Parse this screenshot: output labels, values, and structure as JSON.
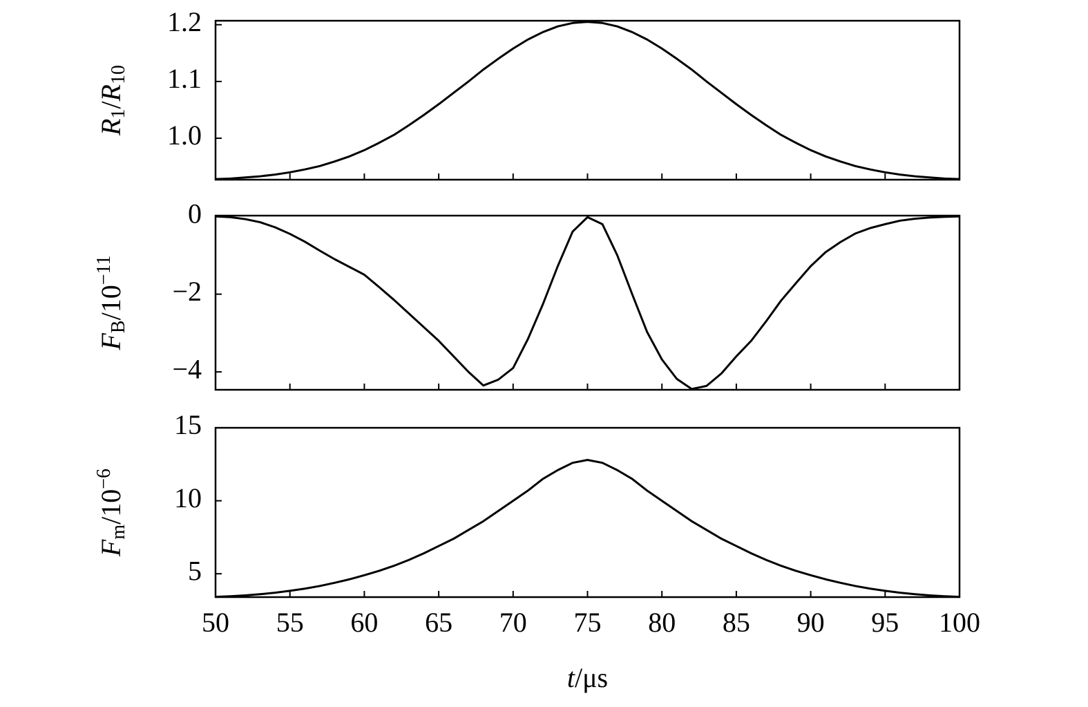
{
  "chart_data": [
    {
      "type": "line",
      "ylabel": [
        {
          "text": "R",
          "style": "italic"
        },
        {
          "text": "1",
          "style": "sub"
        },
        {
          "text": "/"
        },
        {
          "text": "R",
          "style": "italic"
        },
        {
          "text": "10",
          "style": "sub"
        }
      ],
      "x": [
        50,
        51,
        52,
        53,
        54,
        55,
        56,
        57,
        58,
        59,
        60,
        61,
        62,
        63,
        64,
        65,
        66,
        67,
        68,
        69,
        70,
        71,
        72,
        73,
        74,
        75,
        76,
        77,
        78,
        79,
        80,
        81,
        82,
        83,
        84,
        85,
        86,
        87,
        88,
        89,
        90,
        91,
        92,
        93,
        94,
        95,
        96,
        97,
        98,
        99,
        100
      ],
      "values": [
        0.928,
        0.929,
        0.931,
        0.933,
        0.936,
        0.94,
        0.945,
        0.951,
        0.959,
        0.968,
        0.979,
        0.992,
        1.006,
        1.023,
        1.041,
        1.06,
        1.08,
        1.1,
        1.121,
        1.14,
        1.158,
        1.174,
        1.187,
        1.197,
        1.203,
        1.205,
        1.203,
        1.197,
        1.187,
        1.174,
        1.158,
        1.14,
        1.121,
        1.1,
        1.08,
        1.06,
        1.041,
        1.023,
        1.006,
        0.992,
        0.979,
        0.968,
        0.959,
        0.951,
        0.945,
        0.94,
        0.936,
        0.933,
        0.931,
        0.929,
        0.928
      ],
      "color": "#000000",
      "xlim": [
        50,
        100
      ],
      "xticks": [
        50,
        55,
        60,
        65,
        70,
        75,
        80,
        85,
        90,
        95,
        100
      ],
      "ylim": [
        0.927,
        1.207
      ],
      "yticks": [
        {
          "value": 1,
          "label": "1.0"
        },
        1.1,
        1.2
      ]
    },
    {
      "type": "line",
      "ylabel": [
        {
          "text": "F",
          "style": "italic"
        },
        {
          "text": "B",
          "style": "sub"
        },
        {
          "text": "/10"
        },
        {
          "text": "−11",
          "style": "sup"
        }
      ],
      "x": [
        50,
        51,
        52,
        53,
        54,
        55,
        56,
        57,
        58,
        59,
        60,
        61,
        62,
        63,
        64,
        65,
        66,
        67,
        68,
        69,
        70,
        71,
        72,
        73,
        74,
        75,
        76,
        77,
        78,
        79,
        80,
        81,
        82,
        83,
        84,
        85,
        86,
        87,
        88,
        89,
        90,
        91,
        92,
        93,
        94,
        95,
        96,
        97,
        98,
        99,
        100
      ],
      "values": [
        0,
        -0.02,
        -0.07,
        -0.15,
        -0.28,
        -0.45,
        -0.65,
        -0.88,
        -1.1,
        -1.3,
        -1.5,
        -1.82,
        -2.15,
        -2.5,
        -2.85,
        -3.2,
        -3.6,
        -4.0,
        -4.35,
        -4.2,
        -3.9,
        -3.15,
        -2.26,
        -1.28,
        -0.39,
        -0.02,
        -0.2,
        -1.0,
        -2.0,
        -2.97,
        -3.68,
        -4.18,
        -4.44,
        -4.36,
        -4.04,
        -3.6,
        -3.2,
        -2.7,
        -2.17,
        -1.72,
        -1.28,
        -0.92,
        -0.66,
        -0.44,
        -0.3,
        -0.2,
        -0.11,
        -0.06,
        -0.03,
        -0.01,
        0
      ],
      "color": "#000000",
      "xlim": [
        50,
        100
      ],
      "xticks": [
        50,
        55,
        60,
        65,
        70,
        75,
        80,
        85,
        90,
        95,
        100
      ],
      "ylim": [
        -4.46,
        0.02
      ],
      "yticks": [
        {
          "value": -4,
          "label": "−4"
        },
        {
          "value": -2,
          "label": "−2"
        },
        0
      ]
    },
    {
      "type": "line",
      "ylabel": [
        {
          "text": "F",
          "style": "italic"
        },
        {
          "text": "m",
          "style": "sub"
        },
        {
          "text": "/10"
        },
        {
          "text": "−6",
          "style": "sup"
        }
      ],
      "xlabel": [
        {
          "text": "t",
          "style": "italic"
        },
        {
          "text": "/μs"
        }
      ],
      "x": [
        50,
        51,
        52,
        53,
        54,
        55,
        56,
        57,
        58,
        59,
        60,
        61,
        62,
        63,
        64,
        65,
        66,
        67,
        68,
        69,
        70,
        71,
        72,
        73,
        74,
        75,
        76,
        77,
        78,
        79,
        80,
        81,
        82,
        83,
        84,
        85,
        86,
        87,
        88,
        89,
        90,
        91,
        92,
        93,
        94,
        95,
        96,
        97,
        98,
        99,
        100
      ],
      "values": [
        3.42,
        3.46,
        3.52,
        3.6,
        3.7,
        3.83,
        3.98,
        4.16,
        4.38,
        4.62,
        4.9,
        5.2,
        5.55,
        5.95,
        6.4,
        6.9,
        7.4,
        8.0,
        8.6,
        9.3,
        10.0,
        10.7,
        11.5,
        12.1,
        12.6,
        12.8,
        12.6,
        12.1,
        11.5,
        10.7,
        10.0,
        9.3,
        8.6,
        8.0,
        7.4,
        6.9,
        6.4,
        5.95,
        5.55,
        5.2,
        4.9,
        4.62,
        4.38,
        4.16,
        3.98,
        3.83,
        3.7,
        3.6,
        3.52,
        3.46,
        3.42
      ],
      "color": "#000000",
      "xlim": [
        50,
        100
      ],
      "xticks": [
        50,
        55,
        60,
        65,
        70,
        75,
        80,
        85,
        90,
        95,
        100
      ],
      "ylim": [
        3.4,
        15
      ],
      "yticks": [
        5,
        10,
        15
      ]
    }
  ]
}
